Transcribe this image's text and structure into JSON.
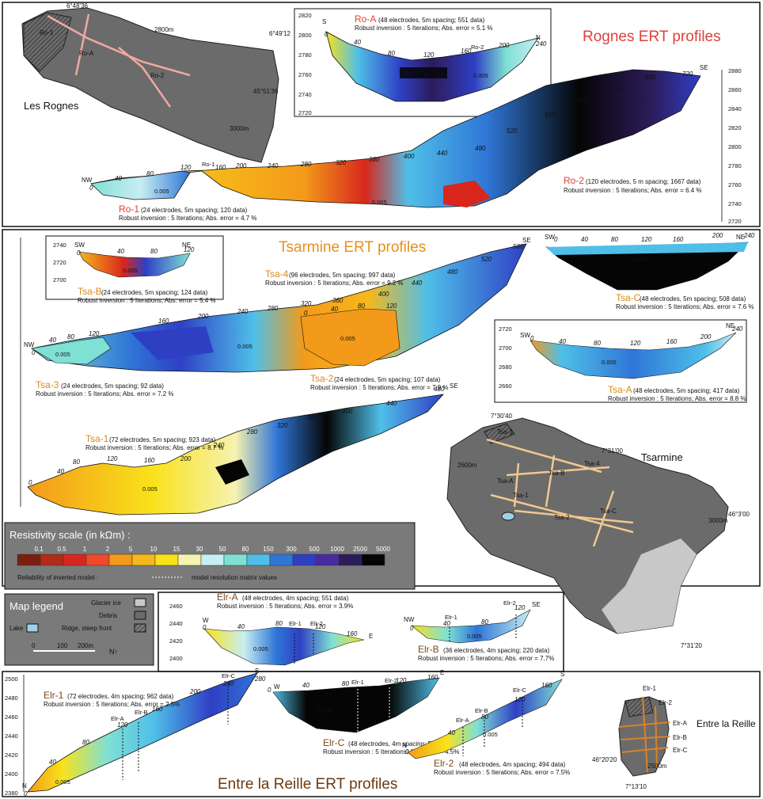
{
  "titles": {
    "rognes": "Rognes ERT profiles",
    "tsarmine": "Tsarmine ERT profiles",
    "reille": "Entre la Reille ERT profiles"
  },
  "maps": {
    "rognes": {
      "name": "Les Rognes",
      "coord_top": "6°48'36",
      "coord_right": "6°49'12",
      "coord_lat": "45°51'36",
      "contour": "3000m",
      "contour2": "2800m",
      "lines": [
        "Ro-1",
        "Ro-A",
        "Ro-2"
      ]
    },
    "tsarmine": {
      "name": "Tsarmine",
      "coord_top": "7°30'40",
      "coord_right": "7°31'00",
      "coord_lat": "46°3'00",
      "coord_bottom": "7°31'20",
      "contour": "2600m",
      "contour2": "3000m",
      "lines": [
        "Tsa-3",
        "Tsa-4",
        "Tsa-B",
        "Tsa-A",
        "Tsa-1",
        "Tsa-2",
        "Tsa-C"
      ]
    },
    "reille": {
      "name": "Entre la Reille",
      "coord_lat": "46°20'20",
      "coord_bottom": "7°13'10",
      "contour": "2500m",
      "lines": [
        "Elr-1",
        "Elr-2",
        "Elr-A",
        "Elr-B",
        "Elr-C"
      ]
    }
  },
  "profiles": {
    "roA": {
      "name": "Ro-A",
      "desc": "(48 electrodes, 5m spacing; 551 data)",
      "inv": "Robust inversion : 5 Iterations; Abs. error = 5.1 %",
      "left": "S",
      "right": "N",
      "yticks": [
        "2820",
        "2800",
        "2780",
        "2760",
        "2740",
        "2720"
      ],
      "dist": [
        "0",
        "40",
        "80",
        "120",
        "160",
        "200",
        "240"
      ],
      "mark": "Ro-2",
      "contour": "0.005"
    },
    "ro1": {
      "name": "Ro-1",
      "desc": "(24 electrodes, 5m spacing; 120 data)",
      "inv": "Robust inversion : 5 Iterations; Abs. error = 4.7 %",
      "left": "NW",
      "dist": [
        "0",
        "40",
        "80",
        "120"
      ],
      "contour": "0.005"
    },
    "ro2": {
      "name": "Ro-2",
      "desc": "(120 electrodes, 5 m spacing; 1667 data)",
      "inv": "Robust inversion : 5 Iterations; Abs. error = 6.4 %",
      "right": "SE",
      "yticks": [
        "2880",
        "2860",
        "2840",
        "2820",
        "2800",
        "2780",
        "2760",
        "2740",
        "2720"
      ],
      "dist": [
        "160",
        "200",
        "240",
        "280",
        "320",
        "360",
        "400",
        "440",
        "480",
        "520",
        "560",
        "600",
        "640",
        "680",
        "720"
      ],
      "mark": "Ro-1",
      "contour": "0.005"
    },
    "tsaB": {
      "name": "Tsa-B",
      "desc": "(24 electrodes, 5m spacing; 124 data)",
      "inv": "Robust inversion : 5 Iterations; Abs. error = 5.4 %",
      "left": "SW",
      "right": "NE",
      "yticks": [
        "2740",
        "2720",
        "2700"
      ],
      "dist": [
        "0",
        "40",
        "80",
        "120"
      ],
      "contour": "0.005"
    },
    "tsa4": {
      "name": "Tsa-4",
      "desc": "(96 electrodes, 5m spacing; 997 data)",
      "inv": "Robust inversion : 5 Iterations; Abs. error = 9.2 %",
      "right": "SE",
      "dist": [
        "160",
        "200",
        "240",
        "280",
        "320",
        "360",
        "400",
        "440",
        "480",
        "520",
        "560"
      ],
      "contour": "0.005"
    },
    "tsaC": {
      "name": "Tsa-C",
      "desc": "(48 electrodes, 5m spacing; 508 data)",
      "inv": "Robust inversion : 5 Iterations; Abs. error = 7.6 %",
      "left": "SW",
      "right": "NE",
      "dist": [
        "0",
        "40",
        "80",
        "120",
        "160",
        "200",
        "240"
      ],
      "contour": "0.005"
    },
    "tsa3": {
      "name": "Tsa-3",
      "desc": "(24 electrodes, 5m spacing; 92 data)",
      "inv": "Robust inversion : 5 Iterations; Abs. error = 7.2 %",
      "left": "NW",
      "dist": [
        "0",
        "40",
        "80",
        "120"
      ],
      "contour": "0.005"
    },
    "tsa2": {
      "name": "Tsa-2",
      "desc": "(24 electrodes, 5m spacing; 107 data)",
      "inv": "Robust inversion : 5 Iterations; Abs. error = 7.9 %",
      "dist": [
        "0",
        "40",
        "80",
        "120"
      ],
      "contour": "0.005"
    },
    "tsaA": {
      "name": "Tsa-A",
      "desc": "(48 electrodes, 5m spacing; 417 data)",
      "inv": "Robust inversion : 5 Iterations; Abs. error = 8.8 %",
      "left": "SW",
      "right": "NE",
      "yticks": [
        "2720",
        "2700",
        "2680",
        "2660"
      ],
      "dist": [
        "0",
        "40",
        "80",
        "120",
        "160",
        "200",
        "240"
      ],
      "contour": "0.005"
    },
    "tsa1": {
      "name": "Tsa-1",
      "desc": "(72 electrodes, 5m spacing; 923 data)",
      "inv": "Robust inversion : 5 Iterations; Abs. error = 8.7 %",
      "right": "SE",
      "dist": [
        "0",
        "40",
        "80",
        "120",
        "160",
        "200",
        "240",
        "280",
        "320",
        "360",
        "400",
        "440",
        "480"
      ],
      "contour": "0.005"
    },
    "elrA": {
      "name": "Elr-A",
      "desc": "(48 electrodes, 4m spacing; 551 data)",
      "inv": "Robust inversion : 5 Iterations; Abs. error = 3.9%",
      "left": "W",
      "right": "E",
      "yticks": [
        "2460",
        "2440",
        "2420",
        "2400"
      ],
      "dist": [
        "0",
        "40",
        "80",
        "120",
        "160"
      ],
      "marks": [
        "Elr-1",
        "Elr-2"
      ],
      "contour": "0.005"
    },
    "elrB": {
      "name": "Elr-B",
      "desc": "(36 electrodes, 4m spacing; 220 data)",
      "inv": "Robust inversion : 5 Iterations; Abs. error = 7.7%",
      "left": "NW",
      "right": "SE",
      "dist": [
        "0",
        "40",
        "80",
        "120"
      ],
      "marks": [
        "Elr-1",
        "Elr-2"
      ],
      "contour": "0.005"
    },
    "elr1": {
      "name": "Elr-1",
      "desc": "(72 electrodes, 4m spacing; 962 data)",
      "inv": "Robust inversion : 5 Iterations; Abs. error = 2.5%",
      "left": "N",
      "right": "S",
      "yticks": [
        "2500",
        "2480",
        "2460",
        "2440",
        "2420",
        "2400",
        "2380"
      ],
      "dist": [
        "0",
        "40",
        "80",
        "120",
        "160",
        "200",
        "240",
        "280"
      ],
      "marks": [
        "Elr-A",
        "Elr-B",
        "Elr-C"
      ],
      "contour": "0.005"
    },
    "elrC": {
      "name": "Elr-C",
      "desc": "(48 electrodes, 4m spacing; 544 data)",
      "inv": "Robust inversion : 5 Iterations; Abs. error = 4.5%",
      "left": "W",
      "right": "E",
      "dist": [
        "0",
        "40",
        "80",
        "120",
        "160"
      ],
      "marks": [
        "Elr-1",
        "Elr-2"
      ],
      "contour": "0.005"
    },
    "elr2": {
      "name": "Elr-2",
      "desc": "(48 electrodes, 4m spacing; 494 data)",
      "inv": "Robust inversion : 5 Iterations; Abs. error = 7.5%",
      "left": "N",
      "right": "S",
      "dist": [
        "0",
        "40",
        "80",
        "120",
        "160"
      ],
      "marks": [
        "Elr-A",
        "Elr-B",
        "Elr-C"
      ],
      "contour": "0.005"
    }
  },
  "resistivity": {
    "title": "Resistivity scale (in kΩm) :",
    "values": [
      "0.1",
      "0.5",
      "1",
      "2",
      "5",
      "10",
      "15",
      "30",
      "50",
      "80",
      "150",
      "300",
      "500",
      "1000",
      "2500",
      "5000"
    ],
    "colors": [
      "#7a1f10",
      "#b22a18",
      "#d9261c",
      "#f04a2a",
      "#f39a1a",
      "#f6b81a",
      "#f8e21a",
      "#f6f2b0",
      "#c7eef2",
      "#7fe0d4",
      "#4fbfe8",
      "#2f76d6",
      "#2f3fc4",
      "#4a2aa0",
      "#2c1c5a",
      "#050505"
    ],
    "reliability": "Reliability of inverted model :",
    "resolution": "model resolution matrix values"
  },
  "map_legend": {
    "title": "Map legend",
    "glacier": "Glacier ice",
    "debris": "Debris",
    "lake": "Lake",
    "ridge": "Ridge, steep front",
    "scale": [
      "0",
      "100",
      "200m"
    ],
    "north": "N↑"
  }
}
